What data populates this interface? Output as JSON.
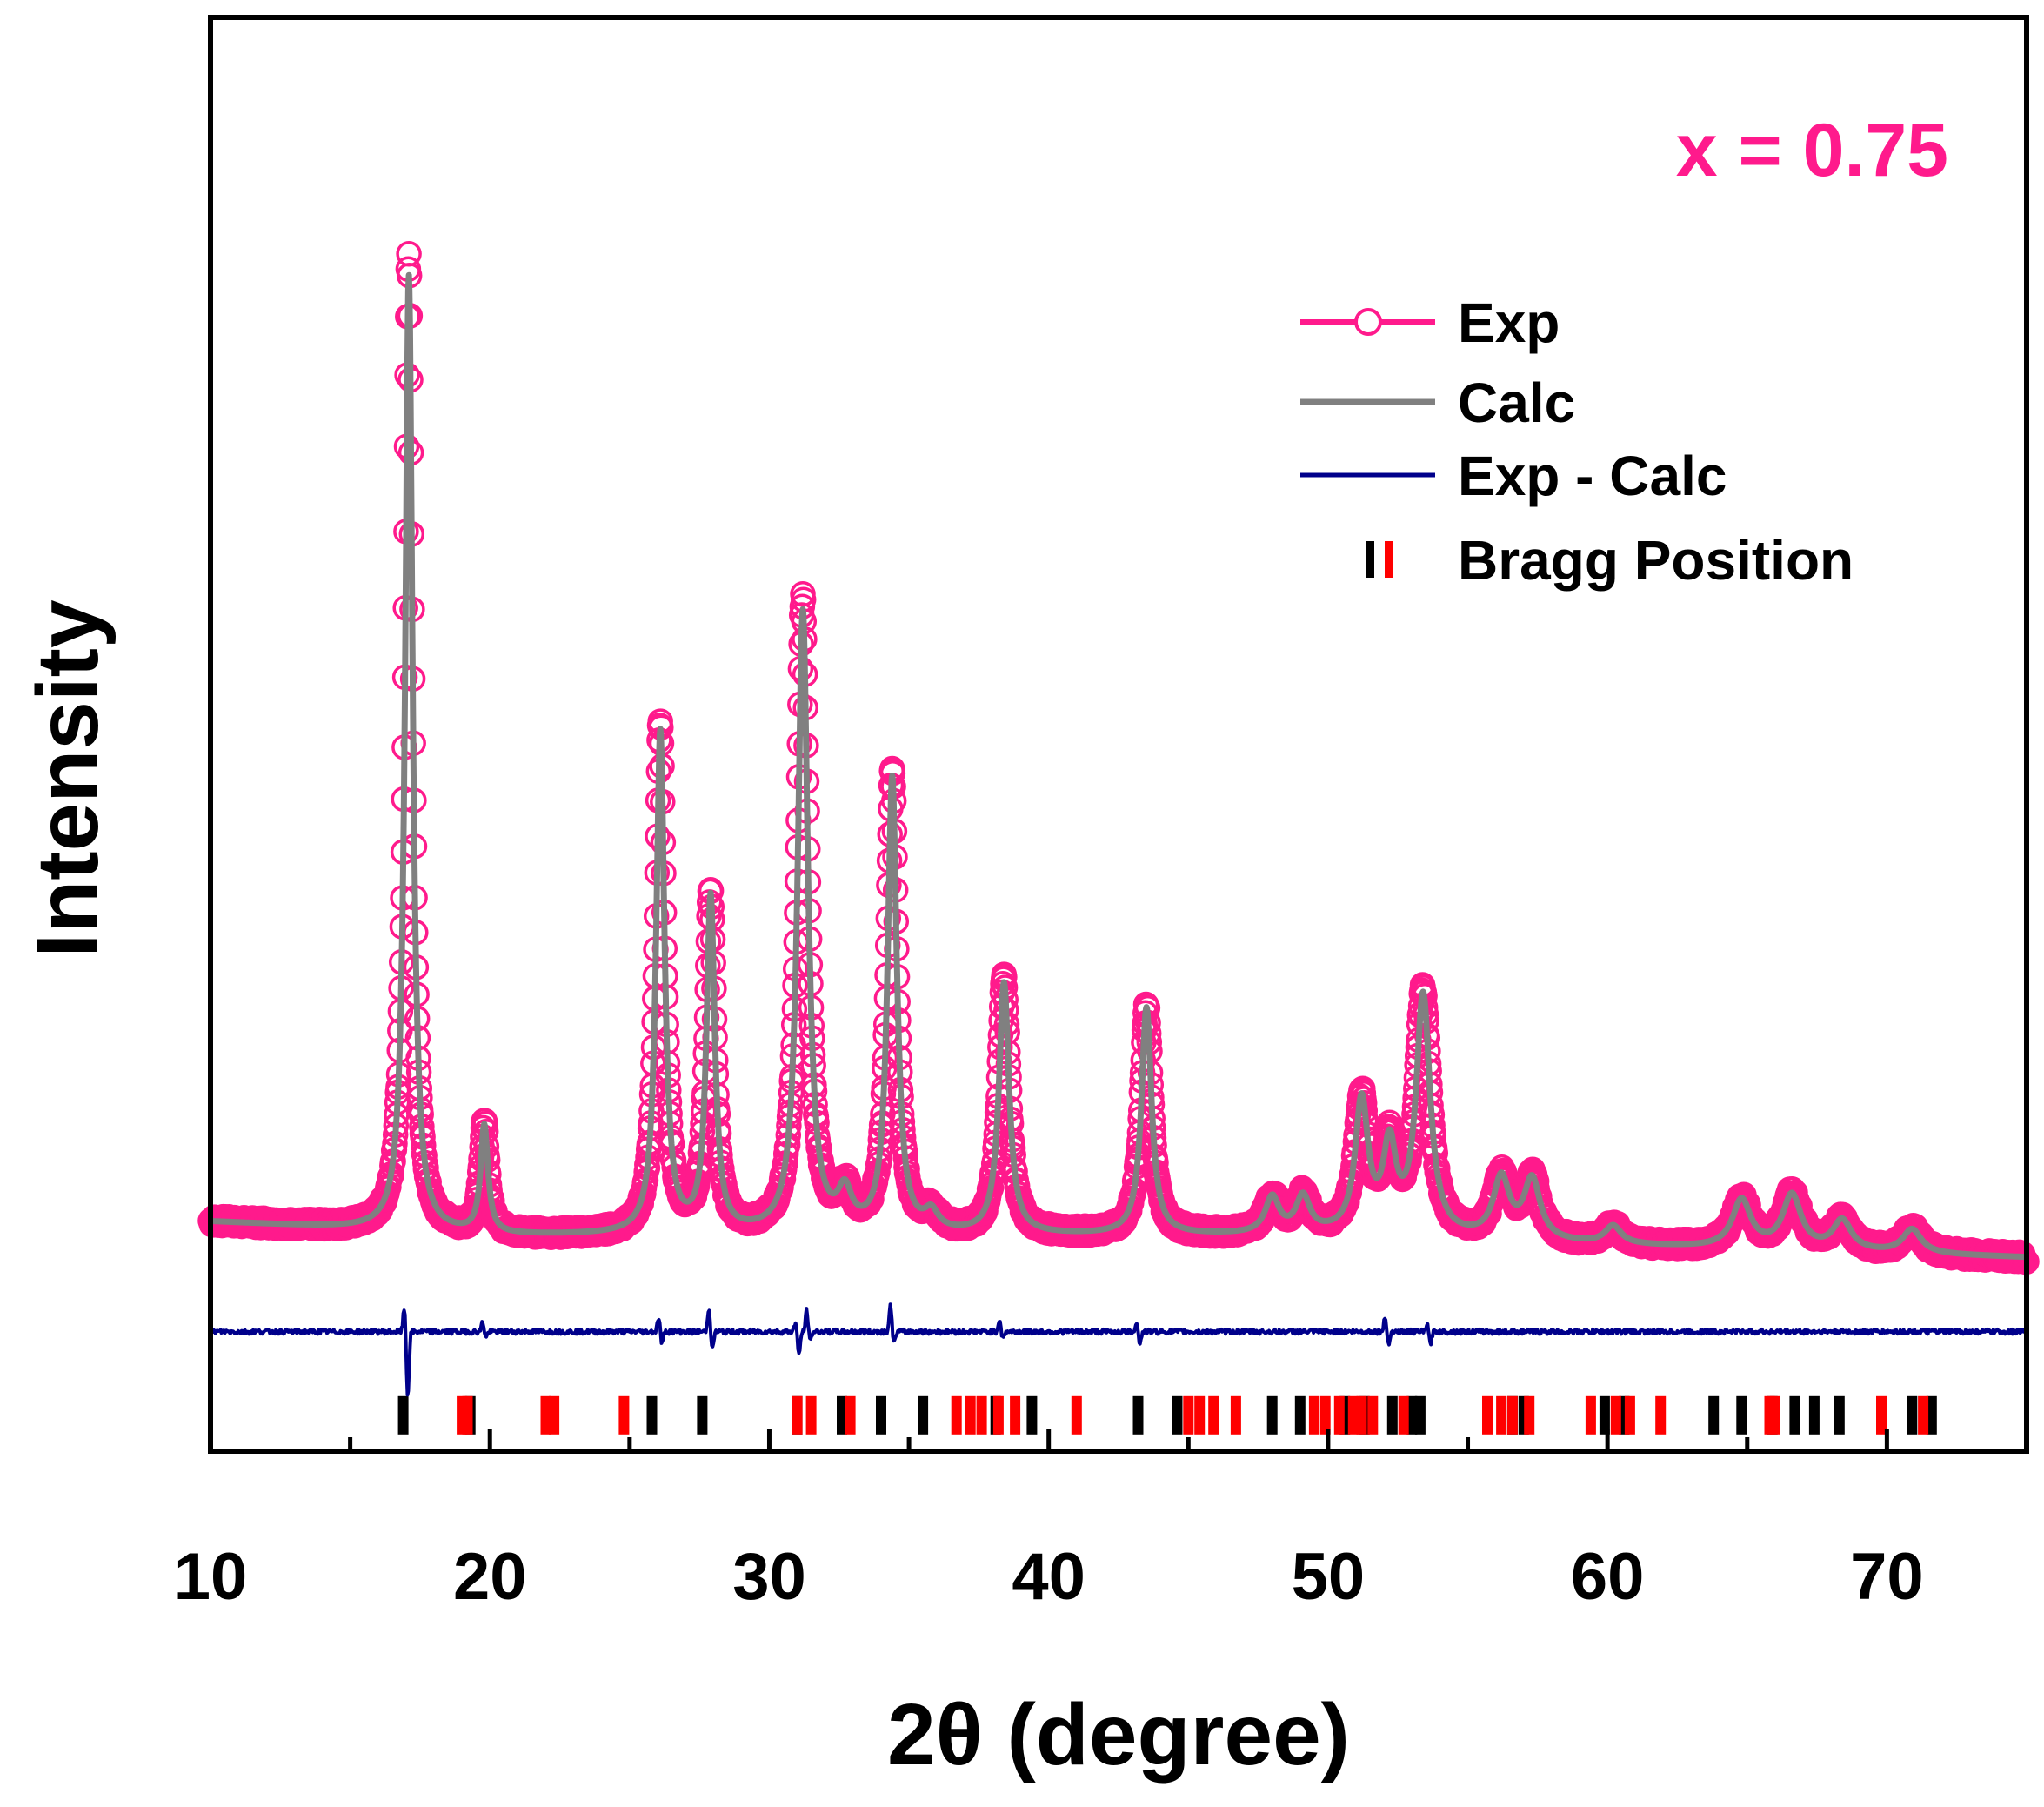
{
  "chart_data": {
    "type": "line",
    "title": "",
    "annotation": "x = 0.75",
    "xlabel": "2θ (degree)",
    "ylabel": "Intensity",
    "xlim": [
      10,
      75
    ],
    "ylim": [
      -0.18,
      1.02
    ],
    "y_ticks_visible": false,
    "x_ticks": [
      {
        "value": 10,
        "label": "10"
      },
      {
        "value": 20,
        "label": "20"
      },
      {
        "value": 30,
        "label": "30"
      },
      {
        "value": 40,
        "label": "40"
      },
      {
        "value": 50,
        "label": "50"
      },
      {
        "value": 60,
        "label": "60"
      },
      {
        "value": 70,
        "label": "70"
      }
    ],
    "legend": {
      "placement": "top-right",
      "entries": [
        {
          "label": "Exp",
          "series": "exp"
        },
        {
          "label": "Calc",
          "series": "calc"
        },
        {
          "label": "Exp - Calc",
          "series": "diff"
        },
        {
          "label": "Bragg Position",
          "series": "bragg"
        }
      ]
    },
    "colors": {
      "exp": "#ff1a8c",
      "calc": "#808080",
      "diff": "#00008b",
      "bragg_phase1": "#000000",
      "bragg_phase2": "#ff0000",
      "annotation": "#ff1a8c"
    },
    "baseline": {
      "points": [
        [
          10,
          0.012
        ],
        [
          20,
          0.0
        ],
        [
          30,
          0.0
        ],
        [
          40,
          0.0
        ],
        [
          50,
          0.0
        ],
        [
          60,
          -0.008
        ],
        [
          75,
          -0.018
        ]
      ]
    },
    "peaks": [
      {
        "center": 17.1,
        "height": 0.8,
        "width": 0.16
      },
      {
        "center": 19.8,
        "height": 0.09,
        "width": 0.16
      },
      {
        "center": 26.1,
        "height": 0.42,
        "width": 0.18
      },
      {
        "center": 27.9,
        "height": 0.28,
        "width": 0.18
      },
      {
        "center": 31.2,
        "height": 0.52,
        "width": 0.22
      },
      {
        "center": 32.7,
        "height": 0.03,
        "width": 0.3
      },
      {
        "center": 34.4,
        "height": 0.38,
        "width": 0.2
      },
      {
        "center": 35.8,
        "height": 0.015,
        "width": 0.3
      },
      {
        "center": 38.4,
        "height": 0.21,
        "width": 0.22
      },
      {
        "center": 43.5,
        "height": 0.19,
        "width": 0.22
      },
      {
        "center": 48.0,
        "height": 0.03,
        "width": 0.3
      },
      {
        "center": 49.1,
        "height": 0.03,
        "width": 0.3
      },
      {
        "center": 51.2,
        "height": 0.11,
        "width": 0.28
      },
      {
        "center": 52.2,
        "height": 0.07,
        "width": 0.28
      },
      {
        "center": 53.4,
        "height": 0.2,
        "width": 0.3
      },
      {
        "center": 56.2,
        "height": 0.05,
        "width": 0.35
      },
      {
        "center": 57.3,
        "height": 0.05,
        "width": 0.35
      },
      {
        "center": 60.2,
        "height": 0.015,
        "width": 0.35
      },
      {
        "center": 64.8,
        "height": 0.04,
        "width": 0.4
      },
      {
        "center": 66.6,
        "height": 0.045,
        "width": 0.4
      },
      {
        "center": 68.4,
        "height": 0.025,
        "width": 0.4
      },
      {
        "center": 70.9,
        "height": 0.02,
        "width": 0.4
      }
    ],
    "diff_baseline": -0.08,
    "diff_features": [
      {
        "x": 17.0,
        "up": 0.02,
        "down": -0.055
      },
      {
        "x": 19.8,
        "up": 0.008,
        "down": -0.005
      },
      {
        "x": 26.1,
        "up": 0.012,
        "down": -0.01
      },
      {
        "x": 27.9,
        "up": 0.02,
        "down": -0.015
      },
      {
        "x": 31.0,
        "up": 0.008,
        "down": -0.02
      },
      {
        "x": 31.4,
        "up": 0.018,
        "down": -0.008
      },
      {
        "x": 34.4,
        "up": 0.022,
        "down": -0.01
      },
      {
        "x": 38.3,
        "up": 0.01,
        "down": -0.006
      },
      {
        "x": 43.2,
        "up": 0.008,
        "down": -0.01
      },
      {
        "x": 52.1,
        "up": 0.012,
        "down": -0.01
      },
      {
        "x": 53.6,
        "up": 0.006,
        "down": -0.01
      }
    ],
    "bragg_positions": {
      "phase1_black": [
        16.9,
        19.3,
        25.8,
        27.6,
        31.0,
        32.6,
        34.0,
        35.5,
        38.1,
        39.4,
        43.2,
        44.6,
        48.0,
        49.0,
        50.6,
        51.3,
        52.3,
        53.0,
        53.3,
        56.6,
        57.0,
        59.9,
        60.6,
        63.8,
        64.8,
        65.9,
        66.7,
        67.4,
        68.3,
        70.9,
        71.6
      ],
      "phase2_red": [
        19.0,
        19.2,
        22.0,
        22.3,
        24.8,
        31.0,
        31.5,
        32.9,
        36.7,
        37.2,
        37.6,
        38.2,
        38.8,
        41.0,
        45.0,
        45.4,
        45.9,
        46.7,
        49.5,
        49.9,
        50.4,
        50.9,
        51.2,
        51.6,
        52.7,
        55.7,
        56.2,
        56.6,
        57.2,
        59.4,
        60.3,
        60.8,
        61.9,
        65.8,
        66.0,
        69.8,
        71.3
      ],
      "y": -0.15
    }
  }
}
